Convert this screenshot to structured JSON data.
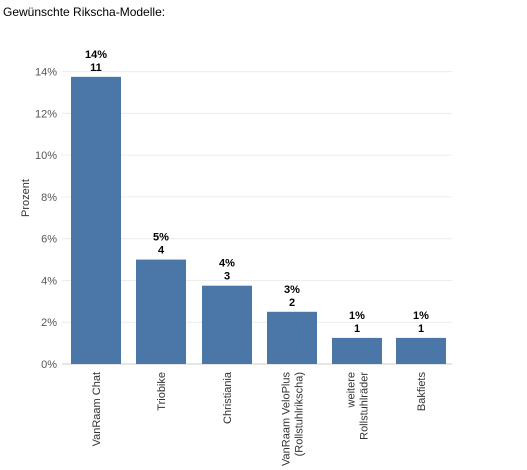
{
  "chart_data": {
    "type": "bar",
    "title": "Gewünschte Rikscha-Modelle:",
    "ylabel": "Prozent",
    "xlabel": "",
    "ylim": [
      0,
      14.7
    ],
    "yticks": [
      0,
      2,
      4,
      6,
      8,
      10,
      12,
      14
    ],
    "ytick_labels": [
      "0%",
      "2%",
      "4%",
      "6%",
      "8%",
      "10%",
      "12%",
      "14%"
    ],
    "grid": true,
    "bar_color": "#4a77a8",
    "categories": [
      [
        "VanRaam Chat"
      ],
      [
        "Triobike"
      ],
      [
        "Christiania"
      ],
      [
        "VanRaam VeloPlus",
        "(Rollstuhlrikscha)"
      ],
      [
        "weitere",
        "Rollstuhlräder"
      ],
      [
        "Bakfiets"
      ]
    ],
    "values": [
      13.75,
      5.0,
      3.75,
      2.5,
      1.25,
      1.25
    ],
    "percent_labels": [
      "14%",
      "5%",
      "4%",
      "3%",
      "1%",
      "1%"
    ],
    "counts": [
      "11",
      "4",
      "3",
      "2",
      "1",
      "1"
    ]
  }
}
